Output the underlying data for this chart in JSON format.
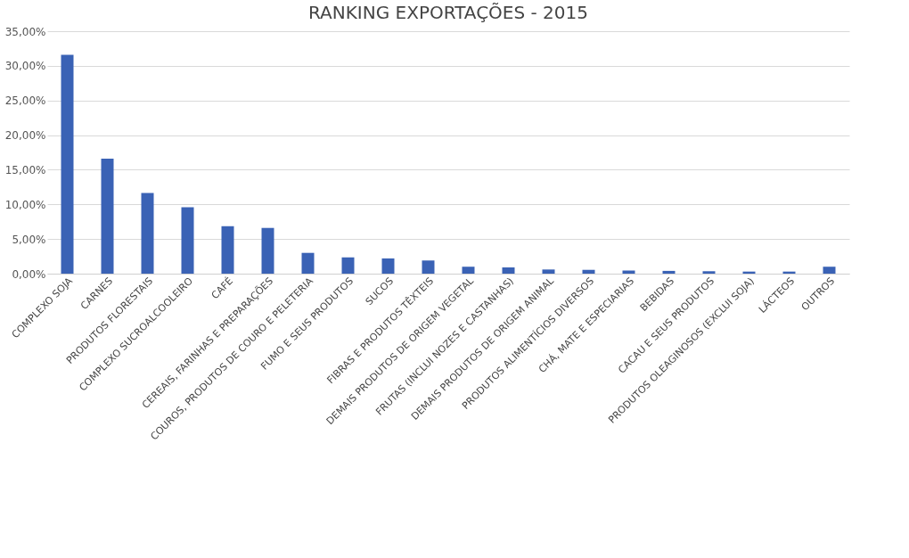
{
  "chart_data": {
    "type": "bar",
    "title": "RANKING EXPORTAÇÕES - 2015",
    "categories": [
      "COMPLEXO SOJA",
      "CARNES",
      "PRODUTOS FLORESTAIS",
      "COMPLEXO SUCROALCOOLEIRO",
      "CAFÉ",
      "CEREAIS, FARINHAS E PREPARAÇÕES",
      "COUROS, PRODUTOS DE COURO E PELETERIA",
      "FUMO E SEUS PRODUTOS",
      "SUCOS",
      "FIBRAS E PRODUTOS TÊXTEIS",
      "DEMAIS PRODUTOS DE ORIGEM VEGETAL",
      "FRUTAS (INCLUI NOZES E CASTANHAS)",
      "DEMAIS PRODUTOS DE ORIGEM ANIMAL",
      "PRODUTOS ALIMENTÍCIOS DIVERSOS",
      "CHÁ, MATE E ESPECIARIAS",
      "BEBIDAS",
      "CACAU E SEUS PRODUTOS",
      "PRODUTOS OLEAGINOSOS (EXCLUI SOJA)",
      "LÁCTEOS",
      "OUTROS"
    ],
    "values": [
      31.6,
      16.6,
      11.65,
      9.6,
      6.85,
      6.6,
      3.0,
      2.35,
      2.2,
      1.9,
      1.0,
      0.9,
      0.6,
      0.55,
      0.45,
      0.4,
      0.35,
      0.3,
      0.3,
      1.0
    ],
    "color": "#3a62b5",
    "ylim": [
      0,
      35
    ],
    "yticks": [
      {
        "value": 0,
        "label": "0,00%"
      },
      {
        "value": 5,
        "label": "5,00%"
      },
      {
        "value": 10,
        "label": "10,00%"
      },
      {
        "value": 15,
        "label": "15,00%"
      },
      {
        "value": 20,
        "label": "20,00%"
      },
      {
        "value": 25,
        "label": "25,00%"
      },
      {
        "value": 30,
        "label": "30,00%"
      },
      {
        "value": 35,
        "label": "35,00%"
      }
    ],
    "grid": "y"
  }
}
